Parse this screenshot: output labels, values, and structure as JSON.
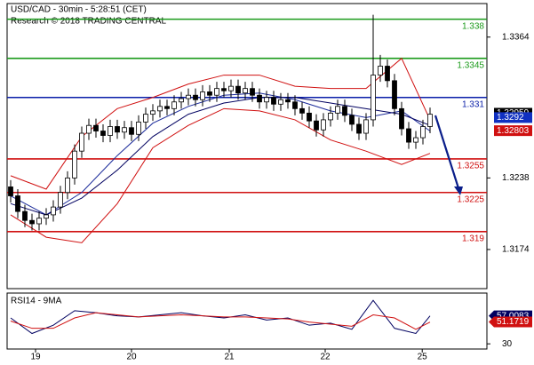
{
  "chart_data": {
    "type": "candlestick",
    "title": "USD/CAD - 30min - 5:28:51 (CET)",
    "subtitle": "Research © 2018 TRADING CENTRAL",
    "ohlc": {
      "open": [
        1.323,
        1.3222,
        1.3208,
        1.32,
        1.3197,
        1.3202,
        1.3205,
        1.3212,
        1.3225,
        1.3238,
        1.3262,
        1.3278,
        1.3285,
        1.328,
        1.3276,
        1.3284,
        1.3279,
        1.3283,
        1.3277,
        1.3288,
        1.3295,
        1.3298,
        1.3302,
        1.33,
        1.3306,
        1.3309,
        1.3312,
        1.3308,
        1.3315,
        1.3312,
        1.3318,
        1.3316,
        1.332,
        1.3314,
        1.3318,
        1.3312,
        1.3306,
        1.331,
        1.3304,
        1.3308,
        1.3306,
        1.33,
        1.3296,
        1.3289,
        1.3281,
        1.329,
        1.3296,
        1.3302,
        1.3294,
        1.3286,
        1.3278,
        1.329,
        1.333,
        1.3338,
        1.3325,
        1.33,
        1.3282,
        1.327,
        1.3274,
        1.3284
      ],
      "high": [
        1.3236,
        1.3228,
        1.3214,
        1.3206,
        1.3208,
        1.3211,
        1.3218,
        1.3231,
        1.3244,
        1.3268,
        1.3284,
        1.3291,
        1.3291,
        1.3286,
        1.329,
        1.329,
        1.3289,
        1.3289,
        1.3294,
        1.3301,
        1.3304,
        1.3308,
        1.3308,
        1.3312,
        1.3315,
        1.3318,
        1.3318,
        1.3321,
        1.3321,
        1.3324,
        1.3324,
        1.3326,
        1.3326,
        1.3324,
        1.3324,
        1.3318,
        1.3316,
        1.3316,
        1.3314,
        1.3314,
        1.3312,
        1.3306,
        1.3302,
        1.3295,
        1.3296,
        1.3302,
        1.3308,
        1.3308,
        1.33,
        1.3292,
        1.3296,
        1.3384,
        1.3348,
        1.3344,
        1.3331,
        1.3306,
        1.3288,
        1.328,
        1.329,
        1.3301
      ],
      "low": [
        1.3216,
        1.3202,
        1.3194,
        1.3191,
        1.3191,
        1.3196,
        1.3199,
        1.3206,
        1.3219,
        1.3232,
        1.3256,
        1.3272,
        1.3274,
        1.327,
        1.327,
        1.3273,
        1.3273,
        1.3271,
        1.3271,
        1.3282,
        1.3289,
        1.3292,
        1.3294,
        1.3294,
        1.33,
        1.3303,
        1.3302,
        1.3302,
        1.3306,
        1.3306,
        1.331,
        1.331,
        1.3308,
        1.3308,
        1.3306,
        1.33,
        1.33,
        1.3298,
        1.3298,
        1.33,
        1.3294,
        1.329,
        1.3283,
        1.3275,
        1.3275,
        1.3284,
        1.329,
        1.3288,
        1.328,
        1.3272,
        1.3272,
        1.3284,
        1.3324,
        1.3319,
        1.3294,
        1.3276,
        1.3264,
        1.3264,
        1.3268,
        1.3278
      ],
      "close": [
        1.3222,
        1.3208,
        1.32,
        1.3197,
        1.3202,
        1.3205,
        1.3212,
        1.3225,
        1.3238,
        1.3262,
        1.3278,
        1.3285,
        1.328,
        1.3276,
        1.3284,
        1.3279,
        1.3283,
        1.3277,
        1.3288,
        1.3295,
        1.3298,
        1.3302,
        1.33,
        1.3306,
        1.3309,
        1.3312,
        1.3308,
        1.3315,
        1.3312,
        1.3318,
        1.3316,
        1.332,
        1.3314,
        1.3318,
        1.3312,
        1.3306,
        1.331,
        1.3304,
        1.3308,
        1.3306,
        1.33,
        1.3296,
        1.3289,
        1.3281,
        1.329,
        1.3296,
        1.3302,
        1.3294,
        1.3286,
        1.3278,
        1.329,
        1.333,
        1.3338,
        1.3325,
        1.33,
        1.3282,
        1.327,
        1.3274,
        1.3284,
        1.3295
      ]
    },
    "xlim": [
      -0.5,
      67
    ],
    "xticks": [
      {
        "value": 3.5,
        "label": "19"
      },
      {
        "value": 17,
        "label": "20"
      },
      {
        "value": 30.75,
        "label": "21"
      },
      {
        "value": 44.25,
        "label": "22"
      },
      {
        "value": 57.9,
        "label": "25"
      }
    ],
    "ylim": [
      1.3139,
      1.3394
    ],
    "yticks": [
      1.3364,
      1.3238,
      1.3174
    ],
    "levels": [
      {
        "value": 1.338,
        "color": "#1a9a1a"
      },
      {
        "value": 1.3345,
        "color": "#1a9a1a"
      },
      {
        "value": 1.331,
        "color": "#0a1ea8"
      },
      {
        "value": 1.3255,
        "color": "#d01010"
      },
      {
        "value": 1.3225,
        "color": "#d01010"
      },
      {
        "value": 1.319,
        "color": "#d01010"
      }
    ],
    "overlays": [
      {
        "color": "#d01010",
        "x": [
          0,
          5,
          10,
          15,
          20,
          25,
          30,
          35,
          40,
          45,
          50,
          55,
          59
        ],
        "values": [
          1.324,
          1.3228,
          1.3275,
          1.33,
          1.331,
          1.3322,
          1.333,
          1.333,
          1.332,
          1.3318,
          1.3318,
          1.3345,
          1.329
        ]
      },
      {
        "color": "#d01010",
        "x": [
          0,
          5,
          10,
          15,
          20,
          25,
          30,
          35,
          40,
          45,
          50,
          55,
          59
        ],
        "values": [
          1.3205,
          1.3185,
          1.318,
          1.3215,
          1.3265,
          1.3285,
          1.33,
          1.3298,
          1.329,
          1.3272,
          1.3262,
          1.325,
          1.326
        ]
      },
      {
        "color": "#1a2a9a",
        "x": [
          0,
          5,
          10,
          15,
          20,
          25,
          30,
          35,
          40,
          45,
          50,
          55,
          59
        ],
        "values": [
          1.3222,
          1.3205,
          1.3225,
          1.3258,
          1.3287,
          1.3302,
          1.3312,
          1.3314,
          1.3308,
          1.3298,
          1.3292,
          1.3298,
          1.328
        ]
      },
      {
        "color": "#000060",
        "x": [
          0,
          5,
          10,
          15,
          20,
          25,
          30,
          35,
          40,
          45,
          50,
          55,
          59
        ],
        "values": [
          1.3215,
          1.3205,
          1.322,
          1.3245,
          1.3275,
          1.3295,
          1.3305,
          1.331,
          1.331,
          1.3305,
          1.33,
          1.3295,
          1.3285
        ]
      }
    ],
    "last_prices": [
      {
        "value": 1.32959,
        "color": "#000000"
      },
      {
        "value": 1.3292,
        "color": "#1030c0"
      },
      {
        "value": 1.32803,
        "color": "#d01010"
      }
    ],
    "rsi": {
      "label": "RSI14 - 9MA",
      "ylim": [
        25,
        79
      ],
      "yticks": [
        30
      ],
      "series": [
        {
          "color": "#000060",
          "x": [
            0,
            3,
            6,
            9,
            12,
            15,
            18,
            21,
            24,
            27,
            30,
            33,
            36,
            39,
            42,
            45,
            48,
            51,
            54,
            57,
            59
          ],
          "values": [
            55,
            40,
            48,
            62,
            60,
            57,
            56,
            58,
            60,
            57,
            55,
            58,
            53,
            55,
            48,
            50,
            44,
            72,
            45,
            40,
            57
          ]
        },
        {
          "color": "#d01010",
          "x": [
            0,
            3,
            6,
            9,
            12,
            15,
            18,
            21,
            24,
            27,
            30,
            33,
            36,
            39,
            42,
            45,
            48,
            51,
            54,
            57,
            59
          ],
          "values": [
            52,
            45,
            45,
            55,
            60,
            58,
            56,
            57,
            58,
            57,
            56,
            56,
            55,
            54,
            51,
            49,
            47,
            58,
            55,
            44,
            51
          ]
        }
      ],
      "last_values": [
        {
          "value": 57.0083,
          "color": "#000060"
        },
        {
          "value": 51.1719,
          "color": "#d01010"
        }
      ]
    }
  }
}
